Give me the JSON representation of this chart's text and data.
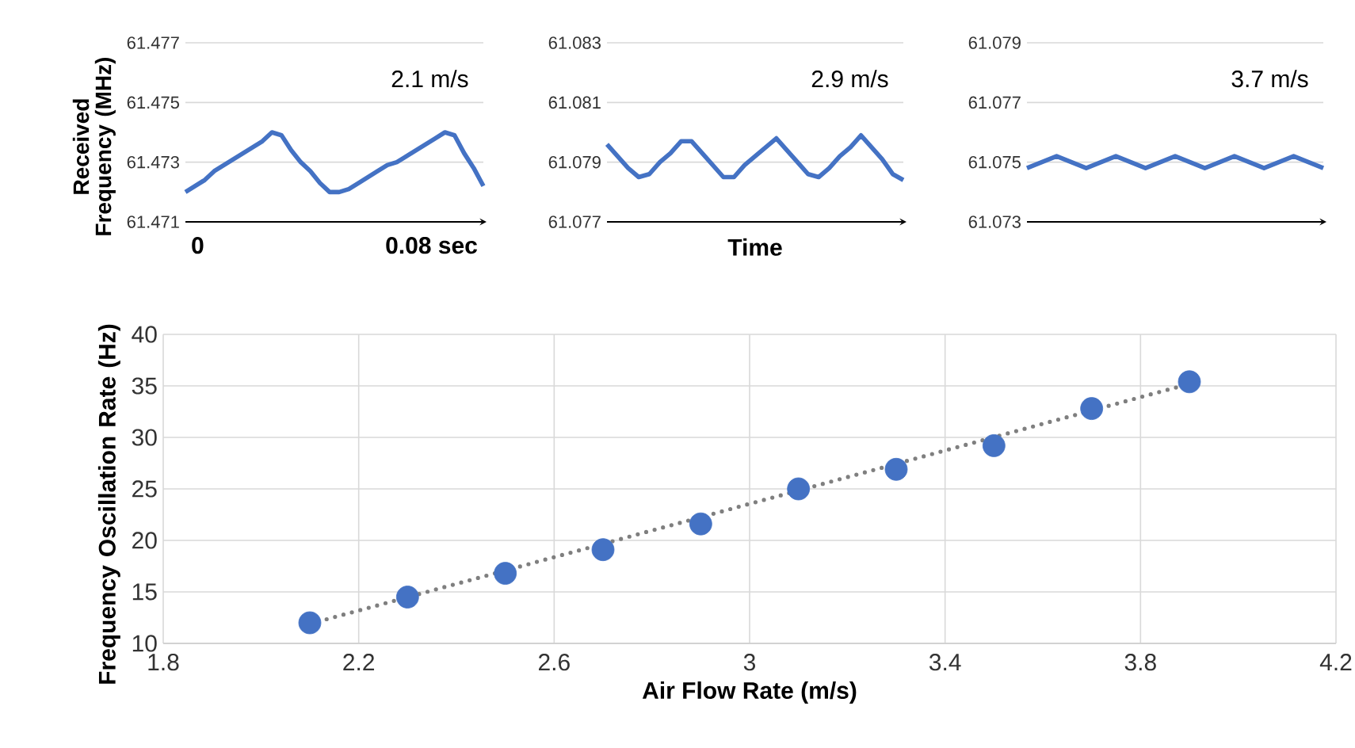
{
  "chart_data": [
    {
      "type": "line",
      "ylabel": "Received Frequency (MHz)",
      "annotations": [
        "2.1 m/s",
        "0",
        "0.08 sec"
      ],
      "categories": [
        null,
        null,
        null,
        null,
        null,
        null,
        null,
        null,
        null,
        null,
        null,
        null,
        null,
        null,
        null,
        null,
        null,
        null,
        null,
        null,
        null,
        null,
        null,
        null,
        null,
        null,
        null,
        null,
        null,
        null,
        null,
        null
      ],
      "values": [
        61.472,
        61.4722,
        61.4724,
        61.4727,
        61.4729,
        61.4731,
        61.4733,
        61.4735,
        61.4737,
        61.474,
        61.4739,
        61.4734,
        61.473,
        61.4727,
        61.4723,
        61.472,
        61.472,
        61.4721,
        61.4723,
        61.4725,
        61.4727,
        61.4729,
        61.473,
        61.4732,
        61.4734,
        61.4736,
        61.4738,
        61.474,
        61.4739,
        61.4733,
        61.4728,
        61.4722
      ],
      "color": "#4472c4",
      "ylim": [
        61.471,
        61.477
      ],
      "yticks": [
        61.471,
        61.473,
        61.475,
        61.477
      ],
      "grid": "y"
    },
    {
      "type": "line",
      "xlabel": "Time",
      "annotations": [
        "2.9 m/s"
      ],
      "categories": [
        null,
        null,
        null,
        null,
        null,
        null,
        null,
        null,
        null,
        null,
        null,
        null,
        null,
        null,
        null,
        null,
        null,
        null,
        null,
        null,
        null,
        null,
        null,
        null,
        null,
        null,
        null,
        null,
        null
      ],
      "values": [
        61.0796,
        61.0792,
        61.0788,
        61.0785,
        61.0786,
        61.079,
        61.0793,
        61.0797,
        61.0797,
        61.0793,
        61.0789,
        61.0785,
        61.0785,
        61.0789,
        61.0792,
        61.0795,
        61.0798,
        61.0794,
        61.079,
        61.0786,
        61.0785,
        61.0788,
        61.0792,
        61.0795,
        61.0799,
        61.0795,
        61.0791,
        61.0786,
        61.0784
      ],
      "color": "#4472c4",
      "ylim": [
        61.077,
        61.083
      ],
      "yticks": [
        61.077,
        61.079,
        61.081,
        61.083
      ],
      "grid": "y"
    },
    {
      "type": "line",
      "annotations": [
        "3.7 m/s"
      ],
      "categories": [
        null,
        null,
        null,
        null,
        null,
        null,
        null,
        null,
        null,
        null,
        null,
        null,
        null,
        null,
        null,
        null,
        null,
        null,
        null,
        null,
        null
      ],
      "values": [
        61.0748,
        61.075,
        61.0752,
        61.075,
        61.0748,
        61.075,
        61.0752,
        61.075,
        61.0748,
        61.075,
        61.0752,
        61.075,
        61.0748,
        61.075,
        61.0752,
        61.075,
        61.0748,
        61.075,
        61.0752,
        61.075,
        61.0748
      ],
      "color": "#4472c4",
      "ylim": [
        61.073,
        61.079
      ],
      "yticks": [
        61.073,
        61.075,
        61.077,
        61.079
      ],
      "grid": "y"
    },
    {
      "type": "scatter",
      "xlabel": "Air Flow Rate (m/s)",
      "ylabel": "Frequency Oscillation Rate (Hz)",
      "series": [
        {
          "type": "scatter",
          "color": "#4472c4",
          "marker": "circle",
          "x": [
            2.1,
            2.3,
            2.5,
            2.7,
            2.9,
            3.1,
            3.3,
            3.5,
            3.7,
            3.9
          ],
          "values": [
            12,
            14.5,
            16.8,
            19.1,
            21.6,
            25,
            26.9,
            29.2,
            32.8,
            35.4
          ]
        },
        {
          "type": "line",
          "color": "#7f7f7f",
          "line_style": "dotted",
          "x": [
            2.1,
            3.9
          ],
          "values": [
            11.9,
            35.2
          ]
        }
      ],
      "xlim": [
        1.8,
        4.2
      ],
      "xticks": [
        1.8,
        2.2,
        2.6,
        3,
        3.4,
        3.8,
        4.2
      ],
      "ylim": [
        10,
        40
      ],
      "yticks": [
        10,
        15,
        20,
        25,
        30,
        35,
        40
      ],
      "grid": true
    }
  ]
}
